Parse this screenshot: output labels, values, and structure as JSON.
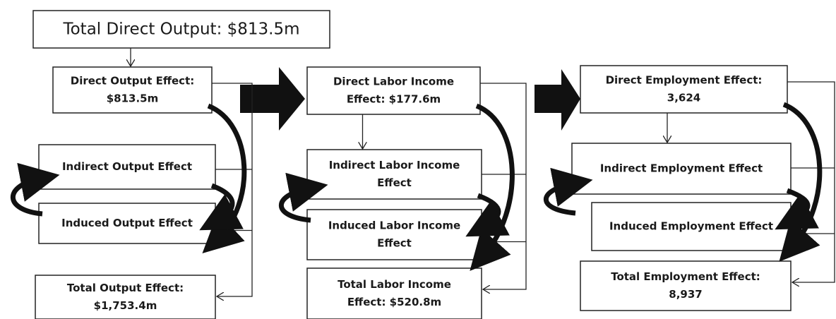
{
  "top": {
    "label": "Total Direct Output: $813.5m"
  },
  "columns": [
    {
      "direct": [
        "Direct Output Effect:",
        "$813.5m"
      ],
      "indirect": [
        "Indirect Output Effect"
      ],
      "induced": [
        "Induced Output Effect"
      ],
      "total": [
        "Total Output Effect:",
        "$1,753.4m"
      ]
    },
    {
      "direct": [
        "Direct Labor Income",
        "Effect: $177.6m"
      ],
      "indirect": [
        "Indirect Labor Income",
        "Effect"
      ],
      "induced": [
        "Induced Labor Income",
        "Effect"
      ],
      "total": [
        "Total Labor Income",
        "Effect: $520.8m"
      ]
    },
    {
      "direct": [
        "Direct Employment Effect:",
        "3,624"
      ],
      "indirect": [
        "Indirect Employment Effect"
      ],
      "induced": [
        "Induced Employment Effect"
      ],
      "total": [
        "Total Employment Effect:",
        "8,937"
      ]
    }
  ]
}
